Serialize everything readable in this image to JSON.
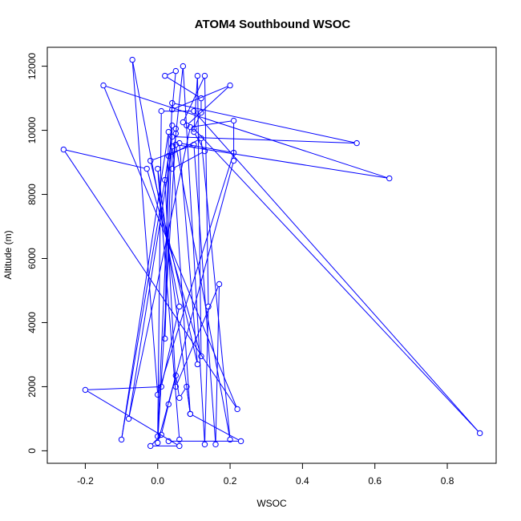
{
  "chart_data": {
    "type": "line",
    "title": "ATOM4 Southbound WSOC",
    "xlabel": "WSOC",
    "ylabel": "Altitude (m)",
    "xlim": [
      -0.305,
      0.935
    ],
    "ylim": [
      -390,
      12590
    ],
    "xticks": [
      -0.2,
      0.0,
      0.2,
      0.4,
      0.6,
      0.8
    ],
    "xtick_labels": [
      "-0.2",
      "0.0",
      "0.2",
      "0.4",
      "0.6",
      "0.8"
    ],
    "yticks": [
      0,
      2000,
      4000,
      6000,
      8000,
      10000,
      12000
    ],
    "ytick_labels": [
      "0",
      "2000",
      "4000",
      "6000",
      "8000",
      "10000",
      "12000"
    ],
    "grid": false,
    "series": [
      {
        "color": "#0000ff",
        "marker": "open-circle",
        "points": [
          {
            "x": 0.03,
            "y": 300
          },
          {
            "x": 0.23,
            "y": 300
          },
          {
            "x": 0.09,
            "y": 1150
          },
          {
            "x": 0.04,
            "y": 9500
          },
          {
            "x": -0.08,
            "y": 1000
          },
          {
            "x": 0.09,
            "y": 10100
          },
          {
            "x": 0.21,
            "y": 10300
          },
          {
            "x": 0.21,
            "y": 9050
          },
          {
            "x": 0.0,
            "y": 250
          },
          {
            "x": 0.05,
            "y": 9900
          },
          {
            "x": 0.05,
            "y": 10050
          },
          {
            "x": 0.04,
            "y": 10150
          },
          {
            "x": 0.02,
            "y": 3500
          },
          {
            "x": 0.03,
            "y": 9950
          },
          {
            "x": -0.1,
            "y": 350
          },
          {
            "x": 0.04,
            "y": 9800
          },
          {
            "x": 0.55,
            "y": 9600
          },
          {
            "x": 0.04,
            "y": 10850
          },
          {
            "x": 0.0,
            "y": 450
          },
          {
            "x": 0.01,
            "y": 10600
          },
          {
            "x": 0.1,
            "y": 10600
          },
          {
            "x": 0.89,
            "y": 550
          },
          {
            "x": 0.1,
            "y": 10050
          },
          {
            "x": 0.12,
            "y": 10550
          },
          {
            "x": 0.12,
            "y": 11000
          },
          {
            "x": 0.02,
            "y": 11700
          },
          {
            "x": 0.05,
            "y": 11850
          },
          {
            "x": 0.04,
            "y": 10650
          },
          {
            "x": 0.2,
            "y": 11400
          },
          {
            "x": 0.08,
            "y": 10150
          },
          {
            "x": 0.07,
            "y": 10250
          },
          {
            "x": 0.13,
            "y": 11700
          },
          {
            "x": 0.14,
            "y": 4500
          },
          {
            "x": 0.13,
            "y": 200
          },
          {
            "x": 0.07,
            "y": 12000
          },
          {
            "x": 0.04,
            "y": 8800
          },
          {
            "x": 0.13,
            "y": 9350
          },
          {
            "x": 0.1,
            "y": 9950
          },
          {
            "x": 0.11,
            "y": 11700
          },
          {
            "x": 0.12,
            "y": 2950
          },
          {
            "x": -0.03,
            "y": 8800
          },
          {
            "x": -0.26,
            "y": 9400
          },
          {
            "x": 0.22,
            "y": 1300
          },
          {
            "x": -0.15,
            "y": 11400
          },
          {
            "x": 0.64,
            "y": 8500
          },
          {
            "x": 0.05,
            "y": 9550
          },
          {
            "x": 0.2,
            "y": 350
          },
          {
            "x": 0.12,
            "y": 9750
          },
          {
            "x": 0.03,
            "y": 9200
          },
          {
            "x": 0.02,
            "y": 8450
          },
          {
            "x": 0.05,
            "y": 2000
          },
          {
            "x": 0.17,
            "y": 5200
          },
          {
            "x": 0.16,
            "y": 200
          },
          {
            "x": 0.1,
            "y": 9550
          },
          {
            "x": -0.02,
            "y": 9050
          },
          {
            "x": 0.11,
            "y": 2700
          },
          {
            "x": 0.06,
            "y": 9600
          },
          {
            "x": 0.21,
            "y": 9300
          },
          {
            "x": 0.0,
            "y": 1750
          },
          {
            "x": -0.07,
            "y": 12200
          },
          {
            "x": 0.06,
            "y": 4500
          },
          {
            "x": 0.01,
            "y": 2000
          },
          {
            "x": -0.2,
            "y": 1900
          },
          {
            "x": 0.06,
            "y": 150
          },
          {
            "x": -0.02,
            "y": 150
          },
          {
            "x": 0.01,
            "y": 500
          },
          {
            "x": 0.03,
            "y": 1450
          },
          {
            "x": 0.05,
            "y": 2350
          },
          {
            "x": 0.06,
            "y": 1650
          },
          {
            "x": 0.08,
            "y": 2000
          },
          {
            "x": 0.09,
            "y": 1150
          },
          {
            "x": 0.0,
            "y": 8800
          },
          {
            "x": 0.06,
            "y": 350
          }
        ]
      }
    ]
  }
}
